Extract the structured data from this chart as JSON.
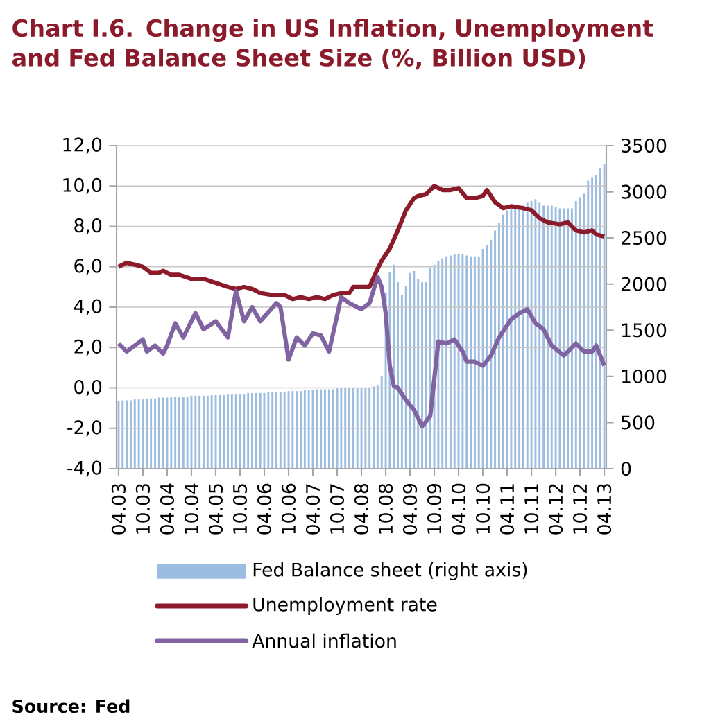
{
  "chart_data": {
    "type": "line",
    "title": "Chart I.6. Change in US Inflation, Unemployment and Fed Balance Sheet Size (%, Billion USD)",
    "annotations": [
      "Source: Fed"
    ],
    "x": [
      "2003-04",
      "2003-05",
      "2003-06",
      "2003-07",
      "2003-08",
      "2003-09",
      "2003-10",
      "2003-11",
      "2003-12",
      "2004-01",
      "2004-02",
      "2004-03",
      "2004-04",
      "2004-05",
      "2004-06",
      "2004-07",
      "2004-08",
      "2004-09",
      "2004-10",
      "2004-11",
      "2004-12",
      "2005-01",
      "2005-02",
      "2005-03",
      "2005-04",
      "2005-05",
      "2005-06",
      "2005-07",
      "2005-08",
      "2005-09",
      "2005-10",
      "2005-11",
      "2005-12",
      "2006-01",
      "2006-02",
      "2006-03",
      "2006-04",
      "2006-05",
      "2006-06",
      "2006-07",
      "2006-08",
      "2006-09",
      "2006-10",
      "2006-11",
      "2006-12",
      "2007-01",
      "2007-02",
      "2007-03",
      "2007-04",
      "2007-05",
      "2007-06",
      "2007-07",
      "2007-08",
      "2007-09",
      "2007-10",
      "2007-11",
      "2007-12",
      "2008-01",
      "2008-02",
      "2008-03",
      "2008-04",
      "2008-05",
      "2008-06",
      "2008-07",
      "2008-08",
      "2008-09",
      "2008-10",
      "2008-11",
      "2008-12",
      "2009-01",
      "2009-02",
      "2009-03",
      "2009-04",
      "2009-05",
      "2009-06",
      "2009-07",
      "2009-08",
      "2009-09",
      "2009-10",
      "2009-11",
      "2009-12",
      "2010-01",
      "2010-02",
      "2010-03",
      "2010-04",
      "2010-05",
      "2010-06",
      "2010-07",
      "2010-08",
      "2010-09",
      "2010-10",
      "2010-11",
      "2010-12",
      "2011-01",
      "2011-02",
      "2011-03",
      "2011-04",
      "2011-05",
      "2011-06",
      "2011-07",
      "2011-08",
      "2011-09",
      "2011-10",
      "2011-11",
      "2011-12",
      "2012-01",
      "2012-02",
      "2012-03",
      "2012-04",
      "2012-05",
      "2012-06",
      "2012-07",
      "2012-08",
      "2012-09",
      "2012-10",
      "2012-11",
      "2012-12",
      "2013-01",
      "2013-02",
      "2013-03",
      "2013-04"
    ],
    "series": [
      {
        "name": "Fed Balance sheet (right axis)",
        "type": "bar",
        "axis": "y2",
        "color": "#9dbde0",
        "values": [
          730,
          740,
          740,
          740,
          750,
          750,
          750,
          760,
          760,
          760,
          770,
          770,
          770,
          780,
          780,
          780,
          780,
          780,
          790,
          790,
          790,
          790,
          790,
          800,
          800,
          800,
          800,
          810,
          810,
          810,
          810,
          810,
          820,
          820,
          820,
          820,
          820,
          830,
          830,
          830,
          830,
          830,
          840,
          840,
          840,
          840,
          850,
          850,
          850,
          860,
          860,
          860,
          860,
          860,
          870,
          870,
          870,
          870,
          870,
          870,
          870,
          870,
          880,
          890,
          900,
          1000,
          1900,
          2130,
          2210,
          2020,
          1880,
          1980,
          2120,
          2140,
          2050,
          2020,
          2020,
          2180,
          2210,
          2250,
          2280,
          2300,
          2310,
          2320,
          2320,
          2320,
          2310,
          2300,
          2300,
          2300,
          2380,
          2420,
          2480,
          2580,
          2660,
          2750,
          2800,
          2820,
          2830,
          2820,
          2850,
          2880,
          2900,
          2920,
          2880,
          2850,
          2850,
          2850,
          2840,
          2820,
          2820,
          2820,
          2820,
          2900,
          2940,
          2980,
          3120,
          3150,
          3180,
          3250,
          3300
        ]
      },
      {
        "name": "Unemployment rate",
        "color": "#8b1a2a",
        "x": [
          "2003-04",
          "2003-06",
          "2003-08",
          "2003-10",
          "2003-12",
          "2004-02",
          "2004-03",
          "2004-05",
          "2004-07",
          "2004-10",
          "2005-01",
          "2005-04",
          "2005-07",
          "2005-09",
          "2005-11",
          "2006-01",
          "2006-03",
          "2006-06",
          "2006-09",
          "2006-11",
          "2007-01",
          "2007-03",
          "2007-05",
          "2007-07",
          "2007-09",
          "2007-11",
          "2008-01",
          "2008-02",
          "2008-04",
          "2008-06",
          "2008-08",
          "2008-09",
          "2008-11",
          "2009-01",
          "2009-03",
          "2009-05",
          "2009-06",
          "2009-08",
          "2009-10",
          "2009-12",
          "2010-02",
          "2010-04",
          "2010-06",
          "2010-08",
          "2010-10",
          "2010-11",
          "2011-01",
          "2011-03",
          "2011-05",
          "2011-08",
          "2011-10",
          "2011-12",
          "2012-02",
          "2012-05",
          "2012-07",
          "2012-09",
          "2012-11",
          "2013-01",
          "2013-02",
          "2013-04"
        ],
        "values": [
          6.0,
          6.2,
          6.1,
          6.0,
          5.7,
          5.7,
          5.8,
          5.6,
          5.6,
          5.4,
          5.4,
          5.2,
          5.0,
          4.9,
          5.0,
          4.9,
          4.7,
          4.6,
          4.6,
          4.4,
          4.5,
          4.4,
          4.5,
          4.4,
          4.6,
          4.7,
          4.7,
          5.0,
          5.0,
          5.0,
          5.9,
          6.3,
          6.9,
          7.8,
          8.8,
          9.4,
          9.5,
          9.6,
          10.0,
          9.8,
          9.8,
          9.9,
          9.4,
          9.4,
          9.5,
          9.8,
          9.2,
          8.9,
          9.0,
          8.9,
          8.8,
          8.4,
          8.2,
          8.1,
          8.2,
          7.8,
          7.7,
          7.8,
          7.6,
          7.5
        ]
      },
      {
        "name": "Annual inflation",
        "color": "#8064a2",
        "x": [
          "2003-04",
          "2003-06",
          "2003-08",
          "2003-10",
          "2003-11",
          "2004-01",
          "2004-03",
          "2004-04",
          "2004-06",
          "2004-08",
          "2004-11",
          "2005-01",
          "2005-04",
          "2005-07",
          "2005-09",
          "2005-11",
          "2006-01",
          "2006-03",
          "2006-07",
          "2006-08",
          "2006-10",
          "2006-12",
          "2007-02",
          "2007-04",
          "2007-06",
          "2007-08",
          "2007-11",
          "2008-01",
          "2008-04",
          "2008-06",
          "2008-08",
          "2008-09",
          "2008-10",
          "2008-11",
          "2008-12",
          "2009-01",
          "2009-03",
          "2009-05",
          "2009-07",
          "2009-09",
          "2009-11",
          "2010-01",
          "2010-03",
          "2010-05",
          "2010-06",
          "2010-08",
          "2010-10",
          "2010-12",
          "2011-02",
          "2011-05",
          "2011-07",
          "2011-09",
          "2011-11",
          "2012-01",
          "2012-03",
          "2012-06",
          "2012-09",
          "2012-11",
          "2013-01",
          "2013-02",
          "2013-04"
        ],
        "values": [
          2.2,
          1.8,
          2.1,
          2.4,
          1.8,
          2.1,
          1.7,
          2.1,
          3.2,
          2.5,
          3.7,
          2.9,
          3.3,
          2.5,
          4.8,
          3.3,
          4.0,
          3.3,
          4.2,
          4.0,
          1.4,
          2.5,
          2.1,
          2.7,
          2.6,
          1.8,
          4.5,
          4.2,
          3.9,
          4.2,
          5.5,
          5.0,
          3.7,
          1.1,
          0.1,
          0.0,
          -0.6,
          -1.1,
          -1.9,
          -1.4,
          2.3,
          2.2,
          2.4,
          1.8,
          1.3,
          1.3,
          1.1,
          1.6,
          2.5,
          3.4,
          3.7,
          3.9,
          3.2,
          2.9,
          2.1,
          1.6,
          2.2,
          1.8,
          1.8,
          2.1,
          1.1
        ]
      }
    ],
    "xlim": [
      "2003-03-16",
      "2013-04-16"
    ],
    "xticks": [
      {
        "value": "2003-04",
        "label": "04.03"
      },
      {
        "value": "2003-10",
        "label": "10.03"
      },
      {
        "value": "2004-04",
        "label": "04.04"
      },
      {
        "value": "2004-10",
        "label": "10.04"
      },
      {
        "value": "2005-04",
        "label": "04.05"
      },
      {
        "value": "2005-10",
        "label": "10.05"
      },
      {
        "value": "2006-04",
        "label": "04.06"
      },
      {
        "value": "2006-10",
        "label": "10.06"
      },
      {
        "value": "2007-04",
        "label": "04.07"
      },
      {
        "value": "2007-10",
        "label": "10.07"
      },
      {
        "value": "2008-04",
        "label": "04.08"
      },
      {
        "value": "2008-10",
        "label": "10.08"
      },
      {
        "value": "2009-04",
        "label": "04.09"
      },
      {
        "value": "2009-10",
        "label": "10.09"
      },
      {
        "value": "2010-04",
        "label": "04.10"
      },
      {
        "value": "2010-10",
        "label": "10.10"
      },
      {
        "value": "2011-04",
        "label": "04.11"
      },
      {
        "value": "2011-10",
        "label": "10.11"
      },
      {
        "value": "2012-04",
        "label": "04.12"
      },
      {
        "value": "2012-10",
        "label": "10.12"
      },
      {
        "value": "2013-04",
        "label": "04.13"
      }
    ],
    "ylim": [
      -4,
      12
    ],
    "yticks": [
      {
        "value": -4,
        "label": "-4,0"
      },
      {
        "value": -2,
        "label": "-2,0"
      },
      {
        "value": 0,
        "label": "0,0"
      },
      {
        "value": 2,
        "label": "2,0"
      },
      {
        "value": 4,
        "label": "4,0"
      },
      {
        "value": 6,
        "label": "6,0"
      },
      {
        "value": 8,
        "label": "8,0"
      },
      {
        "value": 10,
        "label": "10,0"
      },
      {
        "value": 12,
        "label": "12,0"
      }
    ],
    "y2lim": [
      0,
      3500
    ],
    "y2ticks": [
      0,
      500,
      1000,
      1500,
      2000,
      2500,
      3000,
      3500
    ],
    "grid": "y",
    "legend": "bottom",
    "line_style": "solid"
  }
}
